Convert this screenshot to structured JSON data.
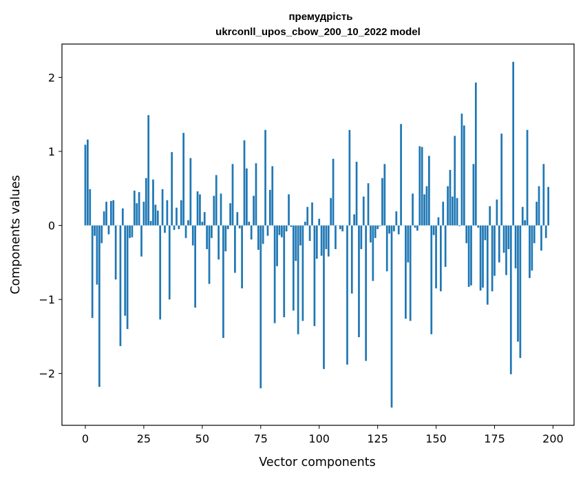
{
  "chart_data": {
    "type": "bar",
    "title": "премудрість",
    "subtitle": "ukrconll_upos_cbow_200_10_2022 model",
    "xlabel": "Vector components",
    "ylabel": "Components values",
    "xlim": [
      -10,
      209
    ],
    "ylim": [
      -2.7,
      2.45
    ],
    "xticks": [
      0,
      25,
      50,
      75,
      100,
      125,
      150,
      175,
      200
    ],
    "xtick_labels": [
      "0",
      "25",
      "50",
      "75",
      "100",
      "125",
      "150",
      "175",
      "200"
    ],
    "yticks": [
      -2,
      -1,
      0,
      1,
      2
    ],
    "ytick_labels": [
      "−2",
      "−1",
      "0",
      "1",
      "2"
    ],
    "bar_color": "#1f77b4",
    "values": [
      1.09,
      1.16,
      0.49,
      -1.25,
      -0.14,
      -0.8,
      -2.18,
      -0.24,
      0.19,
      0.32,
      -0.12,
      0.33,
      0.34,
      -0.73,
      0.0,
      -1.63,
      0.23,
      -1.22,
      -1.4,
      -0.17,
      -0.16,
      0.47,
      0.3,
      0.45,
      -0.42,
      0.32,
      0.64,
      1.49,
      0.06,
      0.62,
      0.28,
      0.2,
      -1.27,
      0.49,
      -0.1,
      0.34,
      -1.0,
      0.99,
      -0.06,
      0.24,
      -0.05,
      0.34,
      1.25,
      -0.17,
      0.07,
      0.91,
      -0.27,
      -1.11,
      0.46,
      0.42,
      0.05,
      0.18,
      -0.32,
      -0.79,
      -0.17,
      0.4,
      0.68,
      -0.46,
      0.43,
      -1.52,
      -0.35,
      -0.05,
      0.3,
      0.83,
      -0.64,
      0.18,
      -0.04,
      -0.85,
      1.15,
      0.77,
      0.05,
      -0.19,
      0.4,
      0.84,
      -0.33,
      -2.2,
      -0.25,
      1.29,
      -0.14,
      0.48,
      0.8,
      -1.32,
      -0.55,
      -0.13,
      -0.16,
      -1.24,
      -0.08,
      0.42,
      -0.02,
      -1.15,
      -0.48,
      -1.47,
      -0.27,
      -1.29,
      0.05,
      0.25,
      -0.21,
      0.31,
      -1.36,
      -0.45,
      0.09,
      -0.41,
      -1.94,
      -0.32,
      -0.42,
      0.37,
      0.9,
      -0.32,
      0.0,
      -0.05,
      -0.08,
      0.0,
      -1.88,
      1.29,
      -0.92,
      0.15,
      0.86,
      -1.51,
      -0.32,
      0.39,
      -1.83,
      0.57,
      -0.23,
      -0.75,
      -0.17,
      -0.05,
      -0.01,
      0.64,
      0.83,
      -0.62,
      -0.11,
      -2.46,
      -0.08,
      0.19,
      -0.12,
      1.37,
      0.0,
      -1.26,
      -0.5,
      -1.29,
      0.43,
      -0.03,
      -0.07,
      1.07,
      1.06,
      0.42,
      0.53,
      0.94,
      -1.47,
      -0.13,
      -0.85,
      0.11,
      -0.89,
      0.32,
      -0.56,
      0.53,
      0.75,
      0.39,
      1.21,
      0.37,
      -0.01,
      1.51,
      1.35,
      -0.24,
      -0.83,
      -0.81,
      0.83,
      1.93,
      -0.03,
      -0.88,
      -0.84,
      -0.2,
      -1.07,
      0.26,
      -0.89,
      -0.68,
      0.35,
      -0.5,
      1.24,
      -0.37,
      -0.67,
      -0.32,
      -2.01,
      2.21,
      -0.58,
      -1.57,
      -1.79,
      0.25,
      0.07,
      1.29,
      -0.71,
      -0.61,
      -0.24,
      0.32,
      0.53,
      -0.34,
      0.83,
      -0.17,
      0.52
    ]
  }
}
